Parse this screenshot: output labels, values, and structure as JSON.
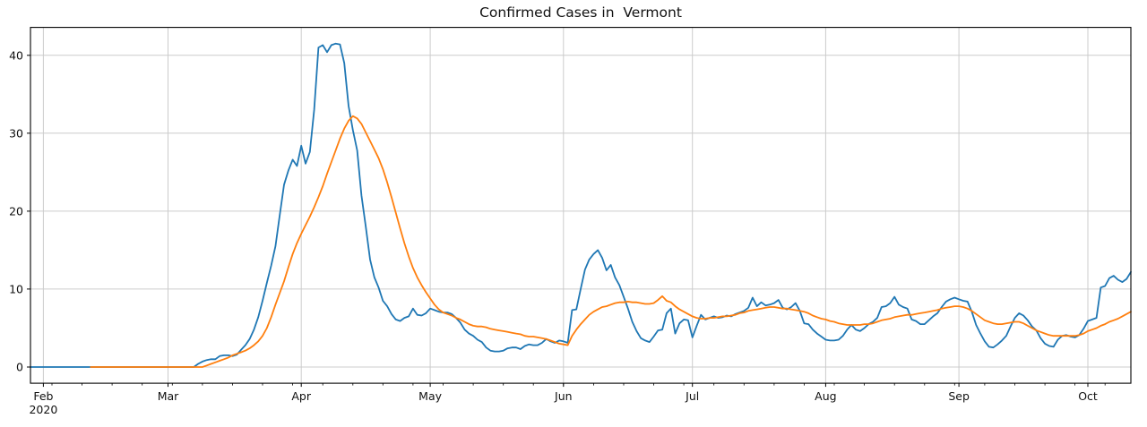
{
  "figure": {
    "title": "Confirmed Cases in  Vermont",
    "background_color": "#ffffff",
    "text_color": "#111111",
    "grid_color": "#cccccc",
    "spine_color": "#000000"
  },
  "chart_data": {
    "type": "line",
    "title": "Confirmed Cases in  Vermont",
    "xlabel": "",
    "ylabel": "",
    "grid": true,
    "legend_position": "none",
    "x_start_date": "2020-01-29",
    "x_end_date": "2020-10-11",
    "x_frequency": "daily",
    "ylim": [
      -2.08,
      43.58
    ],
    "yticks": [
      0,
      10,
      20,
      30,
      40
    ],
    "xticks": [
      {
        "label": "Feb",
        "sublabel": "2020",
        "day_index": 3
      },
      {
        "label": "Mar",
        "day_index": 32
      },
      {
        "label": "Apr",
        "day_index": 63
      },
      {
        "label": "May",
        "day_index": 93
      },
      {
        "label": "Jun",
        "day_index": 124
      },
      {
        "label": "Jul",
        "day_index": 154
      },
      {
        "label": "Aug",
        "day_index": 185
      },
      {
        "label": "Sep",
        "day_index": 216
      },
      {
        "label": "Oct",
        "day_index": 246
      }
    ],
    "minor_xticks": {
      "first_day_index": 5,
      "step_days": 7
    },
    "series": [
      {
        "name": "blue",
        "color": "#1f77b4",
        "values": [
          0,
          0,
          0,
          0,
          0,
          0,
          0,
          0,
          0,
          0,
          0,
          0,
          0,
          0,
          0,
          0,
          0,
          0,
          0,
          0,
          0,
          0,
          0,
          0,
          0,
          0,
          0,
          0,
          0,
          0,
          0,
          0,
          0,
          0,
          0,
          0,
          0,
          0,
          0,
          0.4,
          0.7,
          0.9,
          1.0,
          1.0,
          1.4,
          1.5,
          1.5,
          1.4,
          1.6,
          2.2,
          2.8,
          3.6,
          4.8,
          6.4,
          8.5,
          10.8,
          13.0,
          15.5,
          19.5,
          23.4,
          25.2,
          26.6,
          25.8,
          28.4,
          26.1,
          27.6,
          33.0,
          41.0,
          41.3,
          40.4,
          41.3,
          41.5,
          41.4,
          39.0,
          33.5,
          30.4,
          27.8,
          22.0,
          18.0,
          13.8,
          11.5,
          10.2,
          8.5,
          7.8,
          6.8,
          6.1,
          5.9,
          6.3,
          6.5,
          7.5,
          6.7,
          6.6,
          6.9,
          7.5,
          7.3,
          7.1,
          7.0,
          7.0,
          6.8,
          6.3,
          5.7,
          4.8,
          4.3,
          4.0,
          3.5,
          3.2,
          2.5,
          2.1,
          2.0,
          2.0,
          2.1,
          2.4,
          2.5,
          2.5,
          2.3,
          2.7,
          2.9,
          2.8,
          2.8,
          3.1,
          3.6,
          3.3,
          3.1,
          3.4,
          3.3,
          3.1,
          7.3,
          7.4,
          10.0,
          12.5,
          13.8,
          14.5,
          15.0,
          14.0,
          12.4,
          13.1,
          11.5,
          10.5,
          9.0,
          7.5,
          5.8,
          4.6,
          3.7,
          3.4,
          3.2,
          3.9,
          4.7,
          4.8,
          6.9,
          7.5,
          4.3,
          5.6,
          6.1,
          6.0,
          3.8,
          5.3,
          6.7,
          6.1,
          6.3,
          6.5,
          6.3,
          6.4,
          6.6,
          6.5,
          6.8,
          7.0,
          7.2,
          7.6,
          8.9,
          7.8,
          8.3,
          7.9,
          8.0,
          8.2,
          8.6,
          7.6,
          7.4,
          7.7,
          8.2,
          7.2,
          5.6,
          5.5,
          4.8,
          4.3,
          3.9,
          3.5,
          3.4,
          3.4,
          3.5,
          4.0,
          4.8,
          5.4,
          4.8,
          4.6,
          5.0,
          5.5,
          5.8,
          6.3,
          7.7,
          7.8,
          8.2,
          9.0,
          8.0,
          7.7,
          7.5,
          6.1,
          5.9,
          5.5,
          5.5,
          6.0,
          6.5,
          6.9,
          7.7,
          8.4,
          8.7,
          8.9,
          8.7,
          8.5,
          8.4,
          7.1,
          5.4,
          4.3,
          3.3,
          2.6,
          2.5,
          2.9,
          3.4,
          4.0,
          5.2,
          6.3,
          6.9,
          6.6,
          6.0,
          5.2,
          4.7,
          3.7,
          3.0,
          2.7,
          2.6,
          3.5,
          4.0,
          4.1,
          3.9,
          3.8,
          4.1,
          4.9,
          5.9,
          6.1,
          6.3,
          10.2,
          10.4,
          11.4,
          11.7,
          11.2,
          10.9,
          11.3,
          12.2
        ]
      },
      {
        "name": "orange",
        "color": "#ff7f0e",
        "values": [
          null,
          null,
          null,
          null,
          null,
          null,
          null,
          null,
          null,
          null,
          null,
          null,
          null,
          null,
          0,
          0,
          0,
          0,
          0,
          0,
          0,
          0,
          0,
          0,
          0,
          0,
          0,
          0,
          0,
          0,
          0,
          0,
          0,
          0,
          0,
          0,
          0,
          0,
          0,
          0,
          0,
          0.2,
          0.4,
          0.6,
          0.8,
          1.0,
          1.2,
          1.5,
          1.7,
          1.9,
          2.1,
          2.4,
          2.8,
          3.3,
          4.0,
          5.0,
          6.4,
          8.0,
          9.5,
          11.0,
          12.8,
          14.5,
          15.9,
          17.1,
          18.2,
          19.3,
          20.5,
          21.8,
          23.2,
          24.8,
          26.3,
          27.8,
          29.3,
          30.6,
          31.6,
          32.2,
          31.9,
          31.2,
          30.1,
          29.0,
          27.9,
          26.8,
          25.4,
          23.7,
          21.8,
          19.8,
          17.8,
          15.9,
          14.2,
          12.7,
          11.5,
          10.5,
          9.6,
          8.8,
          8.0,
          7.4,
          7.0,
          6.8,
          6.6,
          6.3,
          6.1,
          5.8,
          5.5,
          5.3,
          5.2,
          5.2,
          5.1,
          4.9,
          4.8,
          4.7,
          4.6,
          4.5,
          4.4,
          4.3,
          4.2,
          4.0,
          3.9,
          3.9,
          3.8,
          3.7,
          3.6,
          3.4,
          3.2,
          3.0,
          2.9,
          2.8,
          4.0,
          4.8,
          5.5,
          6.1,
          6.7,
          7.1,
          7.4,
          7.7,
          7.8,
          8.0,
          8.2,
          8.3,
          8.3,
          8.4,
          8.3,
          8.3,
          8.2,
          8.1,
          8.1,
          8.2,
          8.6,
          9.1,
          8.5,
          8.3,
          7.8,
          7.4,
          7.1,
          6.8,
          6.5,
          6.3,
          6.2,
          6.2,
          6.3,
          6.3,
          6.4,
          6.5,
          6.5,
          6.6,
          6.7,
          6.9,
          7.0,
          7.2,
          7.3,
          7.4,
          7.5,
          7.6,
          7.7,
          7.7,
          7.6,
          7.5,
          7.5,
          7.4,
          7.3,
          7.2,
          7.1,
          6.9,
          6.6,
          6.4,
          6.2,
          6.1,
          5.9,
          5.8,
          5.6,
          5.5,
          5.4,
          5.4,
          5.4,
          5.4,
          5.5,
          5.5,
          5.6,
          5.8,
          6.0,
          6.1,
          6.2,
          6.4,
          6.5,
          6.6,
          6.7,
          6.7,
          6.8,
          6.9,
          7.0,
          7.1,
          7.2,
          7.3,
          7.5,
          7.6,
          7.7,
          7.8,
          7.8,
          7.7,
          7.5,
          7.2,
          6.8,
          6.4,
          6.0,
          5.8,
          5.6,
          5.5,
          5.5,
          5.6,
          5.7,
          5.8,
          5.8,
          5.6,
          5.3,
          5.0,
          4.7,
          4.5,
          4.3,
          4.1,
          4.0,
          4.0,
          4.0,
          4.0,
          4.0,
          4.0,
          4.1,
          4.3,
          4.6,
          4.8,
          5.0,
          5.3,
          5.5,
          5.8,
          6.0,
          6.2,
          6.5,
          6.8,
          7.1
        ]
      }
    ]
  }
}
